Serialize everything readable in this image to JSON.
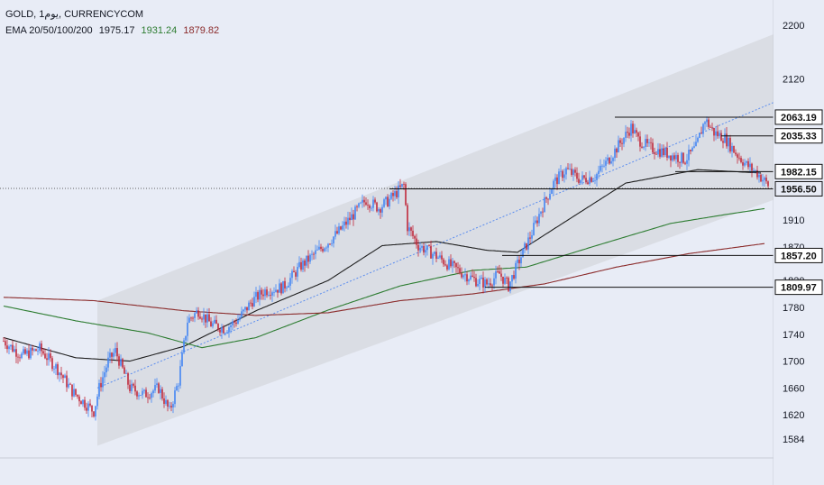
{
  "header": {
    "symbol_line": "GOLD, 1يوم, CURRENCYCOM",
    "ema_label": "EMA 20/50/100/200",
    "ema_values": [
      "1975.17",
      "1931.24",
      "1879.82"
    ]
  },
  "colors": {
    "background": "#e8ecf6",
    "up_candle": "#4285f4",
    "down_candle": "#c0283a",
    "ema20": "#1f1f1f",
    "ema50": "#2e7d32",
    "ema100": "#8b2b2b",
    "channel_fill": "#d5d8de",
    "trend_line": "#5b8def"
  },
  "chart_data": {
    "type": "candlestick",
    "y_axis": {
      "ticks": [
        2200,
        2120,
        1910,
        1870,
        1820,
        1780,
        1740,
        1700,
        1660,
        1620,
        1584
      ],
      "range": [
        1560,
        2240
      ],
      "position": "right"
    },
    "price_levels": [
      {
        "value": 2063.19,
        "label": "2063.19",
        "x_start": 0.71
      },
      {
        "value": 2035.33,
        "label": "2035.33",
        "x_start": 0.85
      },
      {
        "value": 1982.15,
        "label": "1982.15",
        "x_start": 0.78
      },
      {
        "value": 1956.5,
        "label": "1956.50",
        "x_start": 0.45
      },
      {
        "value": 1857.2,
        "label": "1857.20",
        "x_start": 0.58
      },
      {
        "value": 1809.97,
        "label": "1809.97",
        "x_start": 0.56
      }
    ],
    "current_price": 1956.5,
    "current_price_dotted": 1938,
    "candles": {
      "count": 210,
      "anchors": [
        [
          0,
          1730
        ],
        [
          10,
          1708
        ],
        [
          20,
          1718
        ],
        [
          30,
          1688
        ],
        [
          38,
          1655
        ],
        [
          44,
          1640
        ],
        [
          50,
          1625
        ],
        [
          53,
          1660
        ],
        [
          58,
          1700
        ],
        [
          62,
          1715
        ],
        [
          70,
          1660
        ],
        [
          78,
          1650
        ],
        [
          86,
          1660
        ],
        [
          92,
          1625
        ],
        [
          97,
          1670
        ],
        [
          102,
          1760
        ],
        [
          108,
          1775
        ],
        [
          115,
          1755
        ],
        [
          123,
          1748
        ],
        [
          130,
          1762
        ],
        [
          138,
          1790
        ],
        [
          145,
          1805
        ],
        [
          155,
          1810
        ],
        [
          165,
          1842
        ],
        [
          175,
          1865
        ],
        [
          185,
          1890
        ],
        [
          193,
          1915
        ],
        [
          201,
          1940
        ],
        [
          208,
          1928
        ],
        [
          214,
          1940
        ],
        [
          222,
          1962
        ],
        [
          224,
          1900
        ],
        [
          230,
          1872
        ],
        [
          238,
          1860
        ],
        [
          246,
          1845
        ],
        [
          254,
          1832
        ],
        [
          262,
          1820
        ],
        [
          268,
          1815
        ],
        [
          275,
          1830
        ],
        [
          280,
          1812
        ],
        [
          286,
          1850
        ],
        [
          292,
          1885
        ],
        [
          298,
          1925
        ],
        [
          305,
          1965
        ],
        [
          312,
          1985
        ],
        [
          320,
          1970
        ],
        [
          328,
          1975
        ],
        [
          335,
          1998
        ],
        [
          342,
          2025
        ],
        [
          348,
          2048
        ],
        [
          352,
          2030
        ],
        [
          358,
          2018
        ],
        [
          365,
          2012
        ],
        [
          372,
          2005
        ],
        [
          378,
          2000
        ],
        [
          384,
          2018
        ],
        [
          389,
          2060
        ],
        [
          394,
          2040
        ],
        [
          400,
          2032
        ],
        [
          406,
          2010
        ],
        [
          412,
          1992
        ],
        [
          418,
          1980
        ],
        [
          424,
          1962
        ]
      ]
    },
    "ema": [
      {
        "name": "EMA 20",
        "color": "#1f1f1f",
        "start": 0,
        "anchors": [
          [
            0,
            1735
          ],
          [
            40,
            1705
          ],
          [
            70,
            1700
          ],
          [
            100,
            1722
          ],
          [
            140,
            1775
          ],
          [
            180,
            1820
          ],
          [
            210,
            1872
          ],
          [
            240,
            1878
          ],
          [
            268,
            1865
          ],
          [
            285,
            1862
          ],
          [
            310,
            1905
          ],
          [
            345,
            1965
          ],
          [
            385,
            1985
          ],
          [
            420,
            1980
          ]
        ]
      },
      {
        "name": "EMA 50",
        "color": "#2e7d32",
        "start": 0,
        "anchors": [
          [
            0,
            1782
          ],
          [
            40,
            1760
          ],
          [
            80,
            1742
          ],
          [
            110,
            1720
          ],
          [
            140,
            1735
          ],
          [
            180,
            1776
          ],
          [
            220,
            1812
          ],
          [
            260,
            1835
          ],
          [
            290,
            1840
          ],
          [
            330,
            1873
          ],
          [
            370,
            1905
          ],
          [
            400,
            1918
          ],
          [
            422,
            1927
          ]
        ]
      },
      {
        "name": "EMA 100",
        "color": "#8b2b2b",
        "start": 0,
        "anchors": [
          [
            0,
            1795
          ],
          [
            50,
            1790
          ],
          [
            100,
            1775
          ],
          [
            140,
            1768
          ],
          [
            180,
            1772
          ],
          [
            220,
            1790
          ],
          [
            260,
            1800
          ],
          [
            300,
            1815
          ],
          [
            340,
            1840
          ],
          [
            380,
            1860
          ],
          [
            422,
            1875
          ]
        ]
      }
    ],
    "channel": {
      "lower": [
        [
          1560,
          1650
        ],
        [
          2160,
          1930
        ]
      ],
      "upper": [
        [
          1560,
          1786
        ],
        [
          2160,
          2050
        ]
      ]
    }
  }
}
